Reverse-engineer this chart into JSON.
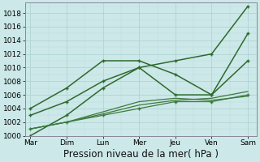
{
  "x_labels": [
    "Mar",
    "Dim",
    "Lun",
    "Mer",
    "Jeu",
    "Ven",
    "Sam"
  ],
  "x_positions": [
    0,
    1,
    2,
    3,
    4,
    5,
    6
  ],
  "series": [
    {
      "name": "line_top",
      "y": [
        1000,
        1003,
        1007,
        1010,
        1011,
        1012,
        1019
      ],
      "color": "#2d6a2d",
      "linewidth": 1.1,
      "marker": "+"
    },
    {
      "name": "line_peaked_high",
      "y": [
        1004,
        1007,
        1011,
        1011,
        1009,
        1006,
        1011
      ],
      "color": "#2d6a2d",
      "linewidth": 1.1,
      "marker": "+"
    },
    {
      "name": "line_mid",
      "y": [
        1003,
        1005,
        1008,
        1010,
        1006,
        1006,
        1015
      ],
      "color": "#2d6a2d",
      "linewidth": 1.1,
      "marker": "+"
    },
    {
      "name": "line_flat1",
      "y": [
        1001,
        1002,
        1003,
        1004,
        1005,
        1005,
        1006
      ],
      "color": "#3d7a3d",
      "linewidth": 0.9,
      "marker": "+"
    },
    {
      "name": "line_flat2",
      "y": [
        1001,
        1002,
        1003.2,
        1004.5,
        1005.2,
        1005.5,
        1006.5
      ],
      "color": "#3d7a3d",
      "linewidth": 0.9,
      "marker": null
    },
    {
      "name": "line_flat3",
      "y": [
        1001,
        1002,
        1003.5,
        1005,
        1005.5,
        1005.2,
        1005.8
      ],
      "color": "#3d7a3d",
      "linewidth": 0.9,
      "marker": null
    }
  ],
  "ylim": [
    1000,
    1019
  ],
  "yticks": [
    1000,
    1002,
    1004,
    1006,
    1008,
    1010,
    1012,
    1014,
    1016,
    1018
  ],
  "xlabel": "Pression niveau de la mer( hPa )",
  "bg_color": "#cce8e8",
  "grid_major_color": "#aad0d0",
  "grid_minor_color": "#bbdddd",
  "label_fontsize": 8.5,
  "tick_fontsize": 6.5,
  "spine_color": "#888899"
}
